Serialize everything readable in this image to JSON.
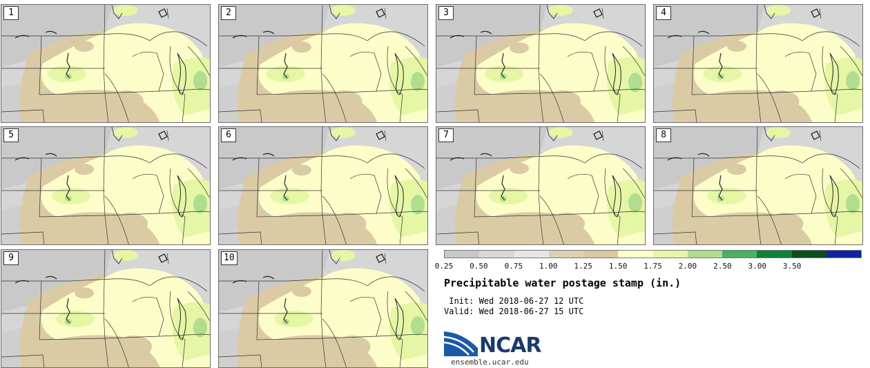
{
  "panels": [
    "1",
    "2",
    "3",
    "4",
    "5",
    "6",
    "7",
    "8",
    "9",
    "10"
  ],
  "colorbar": {
    "colors": [
      "#c8c8c8",
      "#d8d8d8",
      "#e6e6e6",
      "#ddd1b2",
      "#d9c8a2",
      "#fdfec9",
      "#e6f7a6",
      "#b1dd8f",
      "#49b160",
      "#0d8137",
      "#0c4d20",
      "#0f23a0"
    ],
    "labels": [
      "0.25",
      "0.50",
      "0.75",
      "1.00",
      "1.25",
      "1.50",
      "1.75",
      "2.00",
      "2.50",
      "3.00",
      "3.50"
    ]
  },
  "title": "Precipitable water postage stamp (in.)",
  "init": " Init: Wed 2018-06-27 12 UTC",
  "valid": "Valid: Wed 2018-06-27 15 UTC",
  "logo": {
    "name": "NCAR",
    "url": "ensemble.ucar.edu"
  }
}
